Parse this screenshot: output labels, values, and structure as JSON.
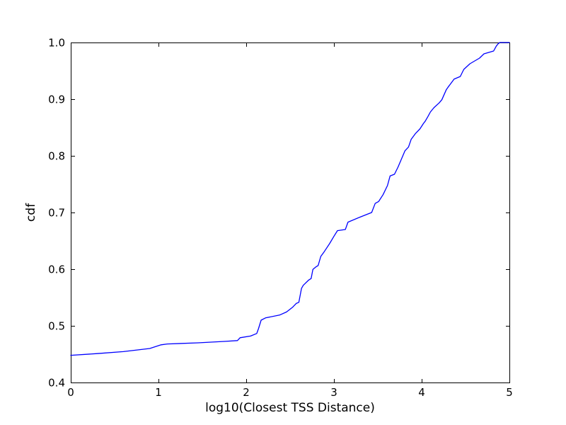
{
  "figure": {
    "background": "#ffffff",
    "axis_color": "#000000",
    "tick_label_color": "#000000"
  },
  "chart_data": {
    "type": "line",
    "title": "",
    "xlabel": "log10(Closest TSS Distance)",
    "ylabel": "cdf",
    "xlim": [
      0,
      5
    ],
    "ylim": [
      0.4,
      1.0
    ],
    "x_ticks": [
      0,
      1,
      2,
      3,
      4,
      5
    ],
    "x_tick_labels": [
      "0",
      "1",
      "2",
      "3",
      "4",
      "5"
    ],
    "y_ticks": [
      0.4,
      0.5,
      0.6,
      0.7,
      0.8,
      0.9,
      1.0
    ],
    "y_tick_labels": [
      "0.4",
      "0.5",
      "0.6",
      "0.7",
      "0.8",
      "0.9",
      "1.0"
    ],
    "grid": false,
    "legend": null,
    "series": [
      {
        "name": "cdf",
        "color": "#0000ff",
        "points": [
          [
            0.0,
            0.448
          ],
          [
            0.3,
            0.451
          ],
          [
            0.6,
            0.4545
          ],
          [
            0.9,
            0.46
          ],
          [
            1.03,
            0.4665
          ],
          [
            1.1,
            0.468
          ],
          [
            1.45,
            0.47
          ],
          [
            1.75,
            0.4725
          ],
          [
            1.9,
            0.474
          ],
          [
            1.93,
            0.479
          ],
          [
            2.05,
            0.482
          ],
          [
            2.12,
            0.4865
          ],
          [
            2.14,
            0.495
          ],
          [
            2.17,
            0.51
          ],
          [
            2.22,
            0.514
          ],
          [
            2.38,
            0.519
          ],
          [
            2.46,
            0.5245
          ],
          [
            2.53,
            0.533
          ],
          [
            2.57,
            0.5395
          ],
          [
            2.6,
            0.5415
          ],
          [
            2.63,
            0.566
          ],
          [
            2.65,
            0.5715
          ],
          [
            2.71,
            0.5805
          ],
          [
            2.74,
            0.5835
          ],
          [
            2.76,
            0.5995
          ],
          [
            2.79,
            0.6035
          ],
          [
            2.82,
            0.6065
          ],
          [
            2.85,
            0.6225
          ],
          [
            2.89,
            0.631
          ],
          [
            2.95,
            0.645
          ],
          [
            3.0,
            0.658
          ],
          [
            3.04,
            0.668
          ],
          [
            3.13,
            0.67
          ],
          [
            3.16,
            0.683
          ],
          [
            3.3,
            0.692
          ],
          [
            3.43,
            0.7
          ],
          [
            3.47,
            0.716
          ],
          [
            3.51,
            0.7195
          ],
          [
            3.56,
            0.7315
          ],
          [
            3.61,
            0.7475
          ],
          [
            3.64,
            0.7645
          ],
          [
            3.69,
            0.7675
          ],
          [
            3.73,
            0.78
          ],
          [
            3.81,
            0.809
          ],
          [
            3.85,
            0.8155
          ],
          [
            3.88,
            0.829
          ],
          [
            3.93,
            0.8395
          ],
          [
            3.98,
            0.8475
          ],
          [
            4.02,
            0.857
          ],
          [
            4.04,
            0.861
          ],
          [
            4.07,
            0.869
          ],
          [
            4.1,
            0.8775
          ],
          [
            4.14,
            0.885
          ],
          [
            4.2,
            0.8935
          ],
          [
            4.23,
            0.899
          ],
          [
            4.28,
            0.9165
          ],
          [
            4.3,
            0.921
          ],
          [
            4.37,
            0.9355
          ],
          [
            4.44,
            0.94
          ],
          [
            4.48,
            0.9525
          ],
          [
            4.55,
            0.9625
          ],
          [
            4.66,
            0.9725
          ],
          [
            4.71,
            0.98
          ],
          [
            4.82,
            0.985
          ],
          [
            4.85,
            0.9935
          ],
          [
            4.87,
            0.9975
          ],
          [
            4.89,
            1.0
          ],
          [
            5.0,
            1.0
          ]
        ]
      }
    ]
  }
}
